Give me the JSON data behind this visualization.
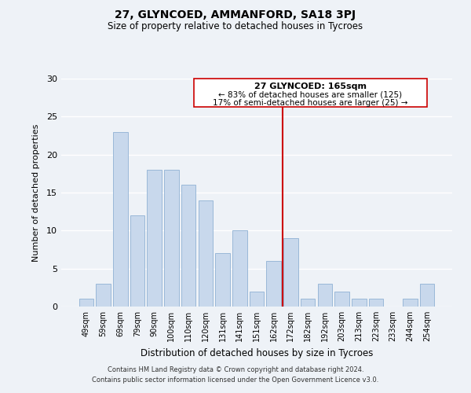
{
  "title": "27, GLYNCOED, AMMANFORD, SA18 3PJ",
  "subtitle": "Size of property relative to detached houses in Tycroes",
  "xlabel": "Distribution of detached houses by size in Tycroes",
  "ylabel": "Number of detached properties",
  "categories": [
    "49sqm",
    "59sqm",
    "69sqm",
    "79sqm",
    "90sqm",
    "100sqm",
    "110sqm",
    "120sqm",
    "131sqm",
    "141sqm",
    "151sqm",
    "162sqm",
    "172sqm",
    "182sqm",
    "192sqm",
    "203sqm",
    "213sqm",
    "223sqm",
    "233sqm",
    "244sqm",
    "254sqm"
  ],
  "values": [
    1,
    3,
    23,
    12,
    18,
    18,
    16,
    14,
    7,
    10,
    2,
    6,
    9,
    1,
    3,
    2,
    1,
    1,
    0,
    1,
    3
  ],
  "bar_color": "#c8d8ec",
  "bar_edge_color": "#9ab8d8",
  "marker_label": "27 GLYNCOED: 165sqm",
  "annotation_line1": "← 83% of detached houses are smaller (125)",
  "annotation_line2": "17% of semi-detached houses are larger (25) →",
  "marker_line_color": "#cc0000",
  "ylim": [
    0,
    30
  ],
  "yticks": [
    0,
    5,
    10,
    15,
    20,
    25,
    30
  ],
  "background_color": "#eef2f7",
  "plot_bg_color": "#eef2f7",
  "footer_line1": "Contains HM Land Registry data © Crown copyright and database right 2024.",
  "footer_line2": "Contains public sector information licensed under the Open Government Licence v3.0.",
  "grid_color": "#ffffff"
}
